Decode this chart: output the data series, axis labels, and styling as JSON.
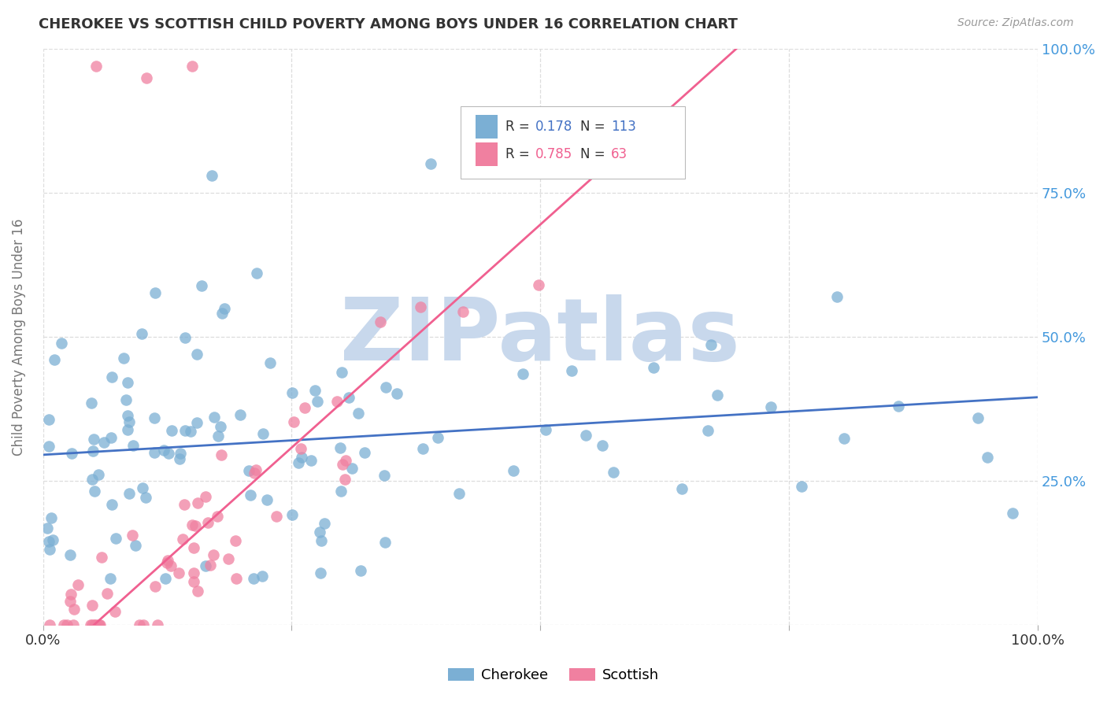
{
  "title": "CHEROKEE VS SCOTTISH CHILD POVERTY AMONG BOYS UNDER 16 CORRELATION CHART",
  "source": "Source: ZipAtlas.com",
  "ylabel": "Child Poverty Among Boys Under 16",
  "xlim": [
    0.0,
    1.0
  ],
  "ylim": [
    0.0,
    1.0
  ],
  "cherokee_color": "#7BAFD4",
  "scottish_color": "#F080A0",
  "cherokee_line_color": "#4472C4",
  "scottish_line_color": "#F06090",
  "cherokee_R": 0.178,
  "cherokee_N": 113,
  "scottish_R": 0.785,
  "scottish_N": 63,
  "watermark": "ZIPatlas",
  "watermark_color": "#C8D8EC",
  "background_color": "#FFFFFF",
  "grid_color": "#DDDDDD",
  "title_color": "#333333",
  "axis_label_color": "#777777",
  "tick_color_right": "#4499DD",
  "tick_color_bottom": "#333333",
  "cherokee_intercept": 0.295,
  "cherokee_slope": 0.1,
  "scottish_intercept": -0.08,
  "scottish_slope": 1.55
}
